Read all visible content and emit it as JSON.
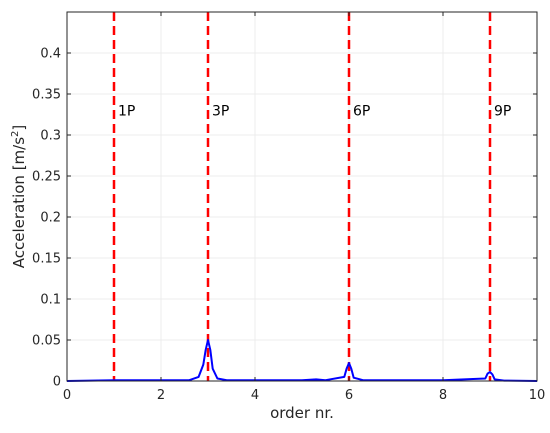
{
  "chart_data": {
    "type": "line",
    "title": "",
    "xlabel": "order nr.",
    "ylabel_main": "Acceleration [m/s",
    "ylabel_sup": "2",
    "ylabel_end": "]",
    "xlim": [
      0,
      10
    ],
    "ylim": [
      0,
      0.45
    ],
    "grid": true,
    "legend": "none",
    "x_ticks": [
      0,
      2,
      4,
      6,
      8,
      10
    ],
    "x_tick_labels": [
      "0",
      "2",
      "4",
      "6",
      "8",
      "10"
    ],
    "y_ticks": [
      0,
      0.05,
      0.1,
      0.15,
      0.2,
      0.25,
      0.3,
      0.35,
      0.4
    ],
    "y_tick_labels": [
      "0",
      "0.05",
      "0.1",
      "0.15",
      "0.2",
      "0.25",
      "0.3",
      "0.35",
      "0.4"
    ],
    "markers": [
      {
        "x": 1,
        "label": "1P",
        "label_y": 0.32
      },
      {
        "x": 3,
        "label": "3P",
        "label_y": 0.32
      },
      {
        "x": 6,
        "label": "6P",
        "label_y": 0.32
      },
      {
        "x": 9,
        "label": "9P",
        "label_y": 0.32
      }
    ],
    "series": [
      {
        "color": "#0000ff",
        "x": [
          0,
          1.0,
          2.0,
          2.6,
          2.8,
          2.9,
          2.95,
          3.0,
          3.05,
          3.1,
          3.2,
          3.4,
          4.0,
          5.0,
          5.3,
          5.5,
          5.9,
          5.95,
          6.0,
          6.05,
          6.1,
          6.3,
          7.0,
          8.0,
          8.9,
          8.95,
          9.0,
          9.05,
          9.1,
          9.3,
          10
        ],
        "y": [
          0,
          0.001,
          0.001,
          0.001,
          0.005,
          0.02,
          0.038,
          0.05,
          0.038,
          0.015,
          0.003,
          0.001,
          0.001,
          0.001,
          0.002,
          0.001,
          0.005,
          0.015,
          0.022,
          0.015,
          0.004,
          0.001,
          0.001,
          0.001,
          0.003,
          0.009,
          0.011,
          0.008,
          0.002,
          0.0005,
          0
        ]
      }
    ],
    "colors": {
      "series": "#0000ff",
      "markers": "#ff0000",
      "grid": "#ececec",
      "axis": "#262626"
    }
  }
}
